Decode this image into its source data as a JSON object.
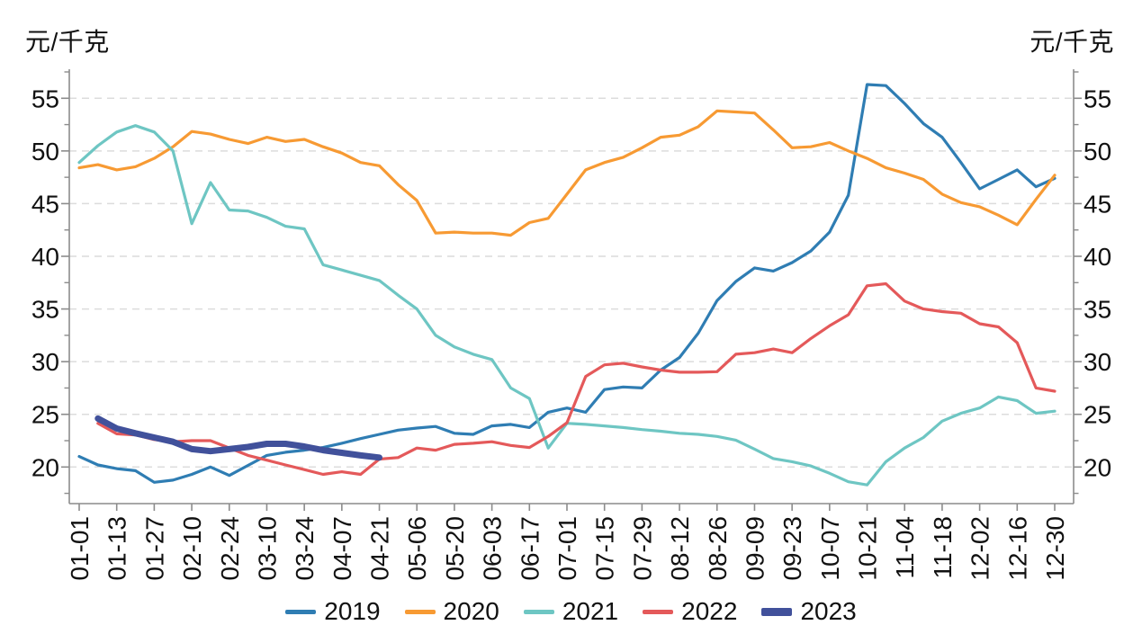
{
  "chart_data": {
    "type": "line",
    "unit_label_left": "元/千克",
    "unit_label_right": "元/千克",
    "grid": "horizontal-dashed",
    "legend_position": "bottom-center",
    "x_tick_labels": [
      "01-01",
      "01-13",
      "01-27",
      "02-10",
      "02-24",
      "03-10",
      "03-24",
      "04-07",
      "04-21",
      "05-06",
      "05-20",
      "06-03",
      "06-17",
      "07-01",
      "07-15",
      "07-29",
      "08-12",
      "08-26",
      "09-09",
      "09-23",
      "10-07",
      "10-21",
      "11-04",
      "11-18",
      "12-02",
      "12-16",
      "12-30"
    ],
    "y_tick_labels": [
      20,
      25,
      30,
      35,
      40,
      45,
      50,
      55
    ],
    "y_minor_tick_step": 2.5,
    "ylim": [
      16.5,
      57.8
    ],
    "x_points_total": 53,
    "series": [
      {
        "name": "2019",
        "color": "#2f7db3",
        "line_width": 3.2,
        "start_index": 0,
        "values": [
          21.0,
          20.2,
          19.85,
          19.65,
          18.55,
          18.75,
          19.3,
          20.0,
          19.2,
          20.15,
          21.1,
          21.4,
          21.6,
          21.85,
          22.25,
          22.7,
          23.1,
          23.5,
          23.7,
          23.85,
          23.2,
          23.1,
          23.9,
          24.05,
          23.75,
          25.2,
          25.6,
          25.2,
          27.35,
          27.6,
          27.5,
          29.2,
          30.4,
          32.7,
          35.8,
          37.6,
          38.9,
          38.6,
          39.4,
          40.5,
          42.3,
          45.8,
          56.3,
          56.2,
          54.5,
          52.6,
          51.3,
          48.9,
          46.4,
          47.3,
          48.2,
          46.6,
          47.4
        ]
      },
      {
        "name": "2020",
        "color": "#f79a33",
        "line_width": 3.2,
        "start_index": 0,
        "values": [
          48.4,
          48.7,
          48.2,
          48.5,
          49.3,
          50.4,
          51.85,
          51.6,
          51.1,
          50.7,
          51.3,
          50.9,
          51.1,
          50.4,
          49.8,
          48.9,
          48.6,
          46.8,
          45.3,
          42.2,
          42.3,
          42.2,
          42.2,
          42.0,
          43.2,
          43.6,
          45.9,
          48.2,
          48.9,
          49.4,
          50.3,
          51.3,
          51.5,
          52.3,
          53.8,
          53.7,
          53.6,
          52.0,
          50.3,
          50.4,
          50.8,
          50.0,
          49.3,
          48.4,
          47.9,
          47.3,
          45.9,
          45.1,
          44.7,
          43.9,
          43.0,
          45.4,
          47.7
        ]
      },
      {
        "name": "2021",
        "color": "#6ec6c3",
        "line_width": 3.2,
        "start_index": 0,
        "values": [
          48.9,
          50.5,
          51.8,
          52.4,
          51.8,
          50.0,
          43.1,
          47.0,
          44.4,
          44.3,
          43.7,
          42.85,
          42.6,
          39.2,
          38.7,
          38.2,
          37.7,
          36.3,
          35.0,
          32.5,
          31.4,
          30.7,
          30.2,
          27.5,
          26.5,
          21.8,
          24.15,
          24.05,
          23.9,
          23.75,
          23.55,
          23.4,
          23.2,
          23.1,
          22.9,
          22.55,
          21.7,
          20.8,
          20.5,
          20.1,
          19.4,
          18.6,
          18.3,
          20.5,
          21.8,
          22.8,
          24.35,
          25.1,
          25.6,
          26.65,
          26.3,
          25.1,
          25.3
        ]
      },
      {
        "name": "2022",
        "color": "#e4595a",
        "line_width": 3.2,
        "start_index": 1,
        "values": [
          24.15,
          23.15,
          23.05,
          22.6,
          22.4,
          22.5,
          22.5,
          21.8,
          21.1,
          20.65,
          20.2,
          19.75,
          19.3,
          19.55,
          19.3,
          20.75,
          20.9,
          21.8,
          21.6,
          22.15,
          22.25,
          22.4,
          22.05,
          21.85,
          22.9,
          24.2,
          28.6,
          29.7,
          29.85,
          29.5,
          29.2,
          29.0,
          29.0,
          29.05,
          30.7,
          30.85,
          31.2,
          30.85,
          32.2,
          33.4,
          34.45,
          37.2,
          37.4,
          35.75,
          35.0,
          34.75,
          34.6,
          33.6,
          33.3,
          31.8,
          27.5,
          27.2
        ]
      },
      {
        "name": "2023",
        "color": "#41519b",
        "line_width": 7,
        "start_index": 1,
        "values": [
          24.6,
          23.65,
          23.2,
          22.8,
          22.4,
          21.7,
          21.5,
          21.7,
          21.9,
          22.2,
          22.2,
          21.95,
          21.6,
          21.35,
          21.1,
          20.9
        ]
      }
    ]
  }
}
